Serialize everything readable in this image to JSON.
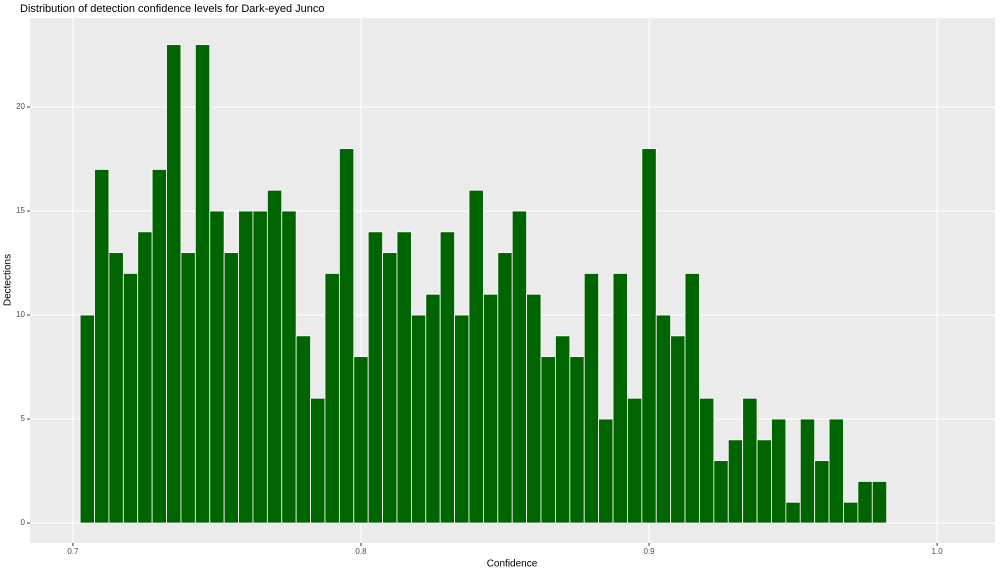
{
  "chart_data": {
    "type": "histogram",
    "title": "Distribution of detection confidence levels for Dark-eyed Junco",
    "x_label": "Confidence",
    "y_label": "Dectections",
    "color": "#006400",
    "bins": [
      0.7025,
      0.7075,
      0.7125,
      0.7175,
      0.7225,
      0.7275,
      0.7325,
      0.7375,
      0.7425,
      0.7475,
      0.7525,
      0.7575,
      0.7625,
      0.7675,
      0.7725,
      0.7775,
      0.7825,
      0.7875,
      0.7925,
      0.7975,
      0.8025,
      0.8075,
      0.8125,
      0.8175,
      0.8225,
      0.8275,
      0.8325,
      0.8375,
      0.8425,
      0.8475,
      0.8525,
      0.8575,
      0.8625,
      0.8675,
      0.8725,
      0.8775,
      0.8825,
      0.8875,
      0.8925,
      0.8975,
      0.9025,
      0.9075,
      0.9125,
      0.9175,
      0.9225,
      0.9275,
      0.9325,
      0.9375,
      0.9425,
      0.9475,
      0.9525,
      0.9575,
      0.9625,
      0.9675,
      0.9725,
      0.9775,
      0.9825
    ],
    "values": [
      10,
      17,
      13,
      12,
      14,
      17,
      23,
      13,
      23,
      15,
      13,
      15,
      15,
      16,
      15,
      9,
      6,
      12,
      18,
      8,
      14,
      13,
      14,
      10,
      11,
      14,
      10,
      16,
      11,
      13,
      15,
      11,
      8,
      9,
      8,
      12,
      5,
      12,
      6,
      18,
      10,
      9,
      12,
      6,
      3,
      4,
      6,
      4,
      5,
      1,
      5,
      3,
      5,
      1,
      2,
      2
    ],
    "xlim": [
      0.6851,
      1.0201
    ],
    "ylim": [
      -0.96,
      24.28
    ],
    "xticks": [
      0.7,
      0.8,
      0.9,
      {
        "value": 1,
        "label": "1.0"
      }
    ],
    "yticks": [
      0,
      5,
      10,
      15,
      20
    ],
    "grid": true
  }
}
